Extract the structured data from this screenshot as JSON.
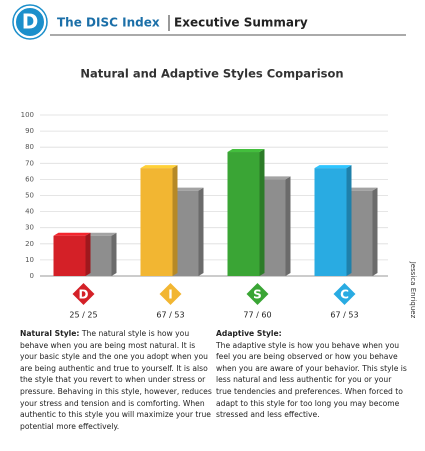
{
  "header": {
    "logo": "D",
    "title": "The DISC Index",
    "subtitle": "Executive Summary"
  },
  "side_label": "Jessica Enriquez",
  "chart_data": {
    "type": "bar",
    "title": "Natural and Adaptive Styles Comparison",
    "categories": [
      "D",
      "I",
      "S",
      "C"
    ],
    "category_colors": [
      "#d42027",
      "#f2b632",
      "#3aa535",
      "#29abe2"
    ],
    "series": [
      {
        "name": "Natural",
        "colors": [
          "#d42027",
          "#f2b632",
          "#3aa535",
          "#29abe2"
        ],
        "values": [
          25,
          67,
          77,
          67
        ]
      },
      {
        "name": "Adaptive",
        "color": "#8e8e8e",
        "values": [
          25,
          53,
          60,
          53
        ]
      }
    ],
    "value_labels": [
      "25 / 25",
      "67 / 53",
      "77 / 60",
      "67 / 53"
    ],
    "ylim": [
      0,
      100
    ],
    "yticks": [
      0,
      10,
      20,
      30,
      40,
      50,
      60,
      70,
      80,
      90,
      100
    ],
    "grid": true
  },
  "columns": [
    {
      "heading": "Natural Style:",
      "body": "The natural style is how you behave when you are being  most natural. It is your basic style and the one you adopt when you are being authentic and true to yourself.  It is also the style that you revert to when under stress or pressure. Behaving in this style, however, reduces your stress and tension and is comforting. When authentic to this style you will maximize your true potential more effectively."
    },
    {
      "heading": "Adaptive Style:",
      "body": "The adaptive style is how you behave when you feel you are being observed or how you behave when you are aware of your behavior. This style is less natural and less authentic for you or your true tendencies and preferences. When forced to adapt to this style for too long you may become stressed and less effective."
    }
  ]
}
